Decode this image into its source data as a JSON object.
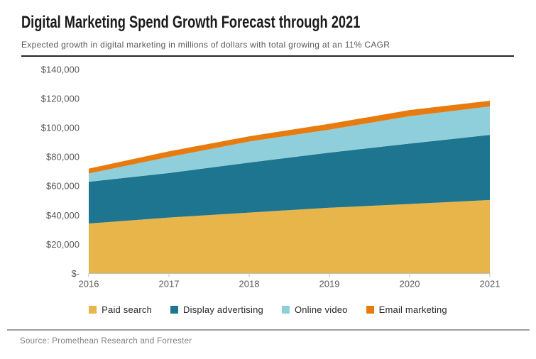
{
  "header": {
    "title": "Digital Marketing Spend Growth Forecast through 2021",
    "subtitle": "Expected growth in digital marketing in millions of dollars with total growing at an 11% CAGR"
  },
  "footer": {
    "source": "Source: Promethean Research and Forrester"
  },
  "chart_data": {
    "type": "area",
    "stacked": true,
    "units": "millions of US dollars",
    "x_labels": [
      "2016",
      "2017",
      "2018",
      "2019",
      "2020",
      "2021"
    ],
    "series": [
      {
        "name": "Paid search",
        "color": "#E7B54A",
        "values": [
          34300,
          38400,
          41800,
          45100,
          47700,
          50400
        ]
      },
      {
        "name": "Display advertising",
        "color": "#1E7590",
        "values": [
          28600,
          30500,
          34300,
          37800,
          41400,
          44700
        ]
      },
      {
        "name": "Online video",
        "color": "#8FCFDB",
        "values": [
          5700,
          11000,
          14400,
          15800,
          18800,
          19500
        ]
      },
      {
        "name": "Email marketing",
        "color": "#E87B0F",
        "values": [
          3300,
          3900,
          3600,
          4000,
          4200,
          3900
        ]
      }
    ],
    "y_ticks": {
      "labels": [
        "$-",
        "$20,000",
        "$40,000",
        "$60,000",
        "$80,000",
        "$100,000",
        "$120,000",
        "$140,000"
      ],
      "values": [
        0,
        20000,
        40000,
        60000,
        80000,
        100000,
        120000,
        140000
      ]
    },
    "ylim": [
      0,
      140000
    ],
    "grid": false,
    "legend_position": "bottom",
    "axis_color": "#BFBFBF",
    "label_color": "#595959"
  }
}
